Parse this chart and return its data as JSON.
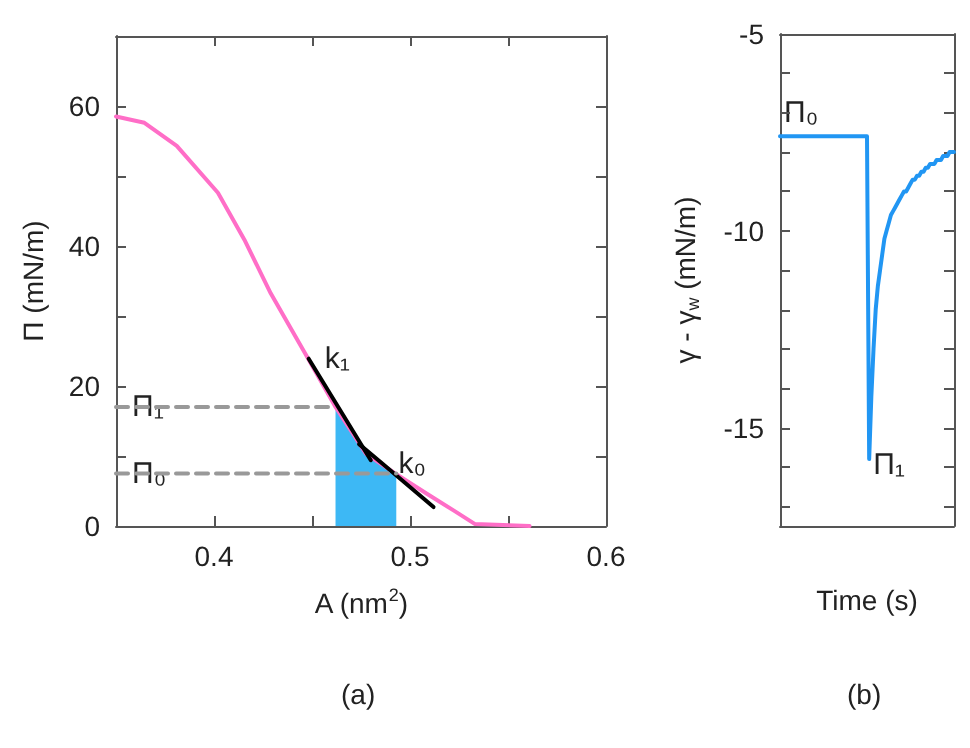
{
  "chart_data": [
    {
      "type": "line",
      "xlabel": "A (nm$^{2}$)",
      "ylabel": "Π (mN/m)",
      "xlim": [
        0.35,
        0.6
      ],
      "ylim": [
        0,
        70
      ],
      "xticks": [
        0.4,
        {
          "value": 0.45,
          "label": null
        },
        0.5,
        {
          "value": 0.55,
          "label": null
        },
        0.6
      ],
      "yticks": [
        0,
        {
          "value": 10,
          "label": null
        },
        20,
        {
          "value": 30,
          "label": null
        },
        40,
        {
          "value": 50,
          "label": null
        },
        60,
        {
          "value": 70,
          "label": null
        }
      ],
      "grid": false,
      "marker": "none",
      "series": [
        {
          "type": "area",
          "color": "#3db8f5",
          "x": [
            0.462,
            0.47,
            0.4776,
            0.485,
            0.493
          ],
          "values": [
            17,
            13.5,
            10.3,
            8.8,
            7.4
          ]
        },
        {
          "color": "#ff6ec7",
          "x": [
            0.35,
            0.3645,
            0.381,
            0.402,
            0.4155,
            0.429,
            0.4466,
            0.462,
            0.4776,
            0.493,
            0.5086,
            0.5224,
            0.533,
            0.561
          ],
          "values": [
            58.5,
            57.6,
            54.3,
            47.6,
            40.9,
            33.2,
            24.6,
            17,
            10.3,
            7.4,
            4.6,
            2.2,
            0.3,
            0
          ]
        },
        {
          "color": "#000000",
          "x": [
            0.4483,
            0.48
          ],
          "values": [
            23.9,
            9.4
          ]
        },
        {
          "color": "#000000",
          "x": [
            0.474,
            0.486,
            0.512
          ],
          "values": [
            11.7,
            8.9,
            2.7
          ]
        },
        {
          "color": "#999999",
          "line_style": "dashed",
          "x": [
            0.35,
            0.462
          ],
          "values": [
            17,
            17
          ]
        },
        {
          "color": "#999999",
          "line_style": "dashed",
          "x": [
            0.35,
            0.493
          ],
          "values": [
            7.5,
            7.5
          ]
        }
      ],
      "annotations": [
        {
          "text": "k₁",
          "x": 0.4483,
          "y": 23.9
        },
        {
          "text": "k₀",
          "x": 0.486,
          "y": 8.9
        },
        {
          "text": "Π₁",
          "x": 0.35,
          "y": 17
        },
        {
          "text": "Π₀",
          "x": 0.35,
          "y": 7.5
        },
        "(a)"
      ]
    },
    {
      "type": "line",
      "xlabel": "Time (s)",
      "ylabel": "γ - γ$_{w}$ (mN/m)",
      "ylim": [
        -17.5,
        -5
      ],
      "categories": [
        null,
        null,
        null,
        null,
        null,
        null,
        null,
        null,
        null,
        null,
        null,
        null,
        null,
        null,
        null,
        null,
        null,
        null,
        null,
        null,
        null,
        null,
        null,
        null,
        null,
        null,
        null,
        null,
        null,
        null,
        null,
        null,
        null,
        null,
        null,
        null,
        null,
        null,
        null,
        null,
        null,
        null,
        null,
        null,
        null,
        null,
        null,
        null,
        null,
        null,
        null,
        null,
        null,
        null,
        null,
        null,
        null,
        null,
        null,
        null,
        null,
        null,
        null,
        null,
        null,
        null,
        null,
        null,
        null,
        null,
        null,
        null,
        null,
        null,
        null,
        null,
        null,
        null,
        null,
        null,
        null
      ],
      "yticks": [
        -15,
        -10,
        -5,
        {
          "value": -6,
          "label": null
        },
        {
          "value": -7,
          "label": null
        },
        {
          "value": -8,
          "label": null
        },
        {
          "value": -9,
          "label": null
        },
        {
          "value": -11,
          "label": null
        },
        {
          "value": -12,
          "label": null
        },
        {
          "value": -13,
          "label": null
        },
        {
          "value": -14,
          "label": null
        },
        {
          "value": -16,
          "label": null
        },
        {
          "value": -17,
          "label": null
        }
      ],
      "tick_labels": "y",
      "grid": false,
      "marker": "none",
      "series": [
        {
          "color": "#2196f3",
          "values": [
            -7.6,
            -7.6,
            -7.6,
            -7.6,
            -7.6,
            -7.6,
            -7.6,
            -7.6,
            -7.6,
            -7.6,
            -7.6,
            -7.6,
            -7.6,
            -7.6,
            -7.6,
            -7.6,
            -7.6,
            -7.6,
            -7.6,
            -7.6,
            -7.6,
            -7.6,
            -7.6,
            -7.6,
            -7.6,
            -7.6,
            -7.6,
            -7.6,
            -7.6,
            -7.6,
            -7.6,
            -7.6,
            -7.6,
            -7.6,
            -7.6,
            -7.6,
            -7.6,
            -7.6,
            -7.6,
            -7.6,
            -7.6,
            -15.8,
            -14.2,
            -13.0,
            -12.0,
            -11.4,
            -11.0,
            -10.6,
            -10.2,
            -10.0,
            -9.8,
            -9.6,
            -9.5,
            -9.4,
            -9.3,
            -9.2,
            -9.1,
            -9.0,
            -9.0,
            -8.9,
            -8.8,
            -8.7,
            -8.7,
            -8.6,
            -8.6,
            -8.5,
            -8.5,
            -8.4,
            -8.4,
            -8.3,
            -8.3,
            -8.3,
            -8.2,
            -8.2,
            -8.2,
            -8.1,
            -8.1,
            -8.1,
            -8.0,
            -8.0,
            -8.0
          ]
        }
      ],
      "annotations": [
        {
          "text": "Π₀",
          "y": -7.6
        },
        "Π₁",
        "(b)"
      ]
    }
  ]
}
